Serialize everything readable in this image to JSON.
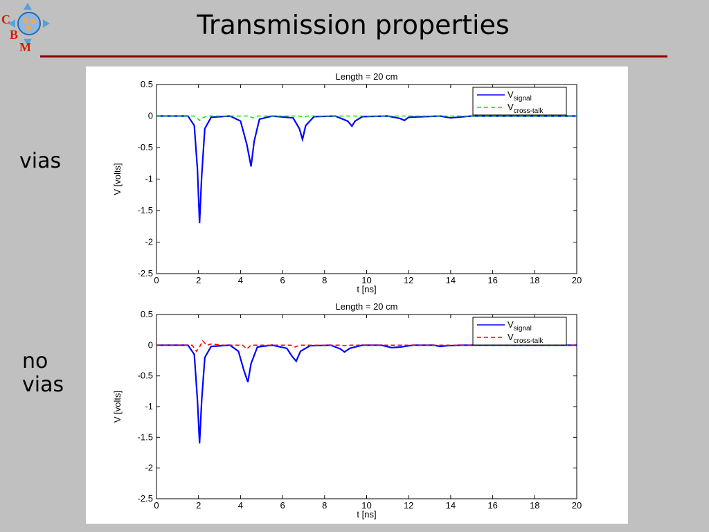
{
  "header": {
    "title": "Transmission properties",
    "logo_letters": [
      "C",
      "B",
      "M"
    ]
  },
  "side_labels": {
    "top": "vias",
    "bottom_line1": "no",
    "bottom_line2": "vias"
  },
  "colors": {
    "background": "#c0c0c0",
    "rule": "#8b0000",
    "signal": "#0000ff",
    "crosstalk_vias": "#00ee00",
    "crosstalk_novias": "#ff0000"
  },
  "chart_data": [
    {
      "type": "line",
      "title": "Length = 20 cm",
      "xlabel": "t [ns]",
      "ylabel": "V [volts]",
      "xlim": [
        0,
        20
      ],
      "ylim": [
        -2.5,
        0.5
      ],
      "xticks": [
        "0",
        "2",
        "4",
        "6",
        "8",
        "10",
        "12",
        "14",
        "16",
        "18",
        "20"
      ],
      "yticks": [
        "0.5",
        "0",
        "-0.5",
        "-1",
        "-1.5",
        "-2",
        "-2.5"
      ],
      "legend_position": "top-right",
      "legend": [
        {
          "main": "V",
          "sub": "signal"
        },
        {
          "main": "V",
          "sub": "cross-talk"
        }
      ],
      "series": [
        {
          "style": "solid",
          "color": "#0000ff",
          "x": [
            0,
            1.5,
            1.8,
            1.95,
            2.05,
            2.15,
            2.3,
            2.6,
            3.5,
            4.0,
            4.3,
            4.5,
            4.65,
            4.9,
            5.5,
            6.5,
            6.8,
            6.95,
            7.1,
            7.5,
            8.5,
            9.1,
            9.3,
            9.45,
            9.8,
            11.0,
            11.6,
            11.8,
            12.0,
            13.5,
            14.0,
            14.3,
            15.0,
            20
          ],
          "y": [
            0,
            0,
            -0.15,
            -0.85,
            -1.7,
            -0.95,
            -0.2,
            -0.02,
            0,
            -0.08,
            -0.45,
            -0.8,
            -0.4,
            -0.05,
            0,
            -0.03,
            -0.2,
            -0.37,
            -0.15,
            -0.01,
            0,
            -0.08,
            -0.16,
            -0.08,
            -0.01,
            0,
            -0.04,
            -0.07,
            -0.02,
            0,
            -0.03,
            -0.02,
            0,
            0
          ]
        },
        {
          "style": "dashed",
          "color": "#00ee00",
          "x": [
            0,
            1.8,
            1.95,
            2.05,
            2.2,
            2.4,
            4.4,
            4.6,
            4.8,
            6.8,
            7.0,
            7.2,
            20
          ],
          "y": [
            0,
            0,
            -0.04,
            -0.07,
            -0.03,
            0,
            0,
            -0.03,
            0,
            0,
            -0.02,
            0,
            0
          ]
        }
      ]
    },
    {
      "type": "line",
      "title": "Length = 20 cm",
      "xlabel": "t [ns]",
      "ylabel": "V [volts]",
      "xlim": [
        0,
        20
      ],
      "ylim": [
        -2.5,
        0.5
      ],
      "xticks": [
        "0",
        "2",
        "4",
        "6",
        "8",
        "10",
        "12",
        "14",
        "16",
        "18",
        "20"
      ],
      "yticks": [
        "0.5",
        "0",
        "-0.5",
        "-1",
        "-1.5",
        "-2",
        "-2.5"
      ],
      "legend_position": "top-right",
      "legend": [
        {
          "main": "V",
          "sub": "signal"
        },
        {
          "main": "V",
          "sub": "cross-talk"
        }
      ],
      "series": [
        {
          "style": "solid",
          "color": "#0000ff",
          "x": [
            0,
            1.5,
            1.8,
            1.95,
            2.05,
            2.15,
            2.3,
            2.6,
            3.5,
            3.9,
            4.15,
            4.35,
            4.5,
            4.8,
            5.5,
            6.2,
            6.45,
            6.65,
            6.85,
            7.3,
            8.3,
            8.75,
            8.95,
            9.2,
            9.8,
            10.7,
            11.2,
            11.6,
            12.2,
            13.2,
            13.5,
            13.8,
            14.5,
            20
          ],
          "y": [
            0,
            0,
            -0.15,
            -0.9,
            -1.6,
            -0.9,
            -0.2,
            -0.02,
            0,
            -0.1,
            -0.4,
            -0.6,
            -0.3,
            -0.03,
            0,
            -0.05,
            -0.18,
            -0.26,
            -0.1,
            -0.01,
            0,
            -0.06,
            -0.11,
            -0.05,
            0,
            0,
            -0.04,
            -0.03,
            0,
            0,
            -0.02,
            -0.01,
            0,
            0
          ]
        },
        {
          "style": "dashed",
          "color": "#ff0000",
          "x": [
            0,
            1.7,
            1.9,
            2.05,
            2.2,
            2.4,
            2.6,
            3.2,
            4.1,
            4.3,
            4.5,
            6.4,
            6.6,
            6.8,
            8.8,
            9.0,
            9.2,
            20
          ],
          "y": [
            0,
            0,
            -0.1,
            -0.03,
            0.07,
            0,
            0.02,
            0,
            0,
            -0.06,
            0,
            0,
            -0.03,
            0,
            0,
            -0.01,
            0,
            0
          ]
        }
      ]
    }
  ]
}
